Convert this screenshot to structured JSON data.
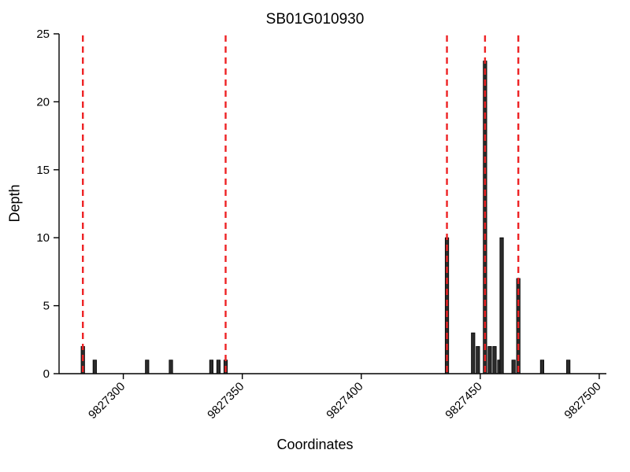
{
  "chart_data": {
    "type": "bar",
    "title": "SB01G010930",
    "xlabel": "Coordinates",
    "ylabel": "Depth",
    "xlim": [
      9827273,
      9827503
    ],
    "ylim": [
      0,
      25
    ],
    "x_ticks": [
      9827300,
      9827350,
      9827400,
      9827450,
      9827500
    ],
    "y_ticks": [
      0,
      5,
      10,
      15,
      20,
      25
    ],
    "bars": [
      {
        "x": 9827283,
        "depth": 2
      },
      {
        "x": 9827288,
        "depth": 1
      },
      {
        "x": 9827310,
        "depth": 1
      },
      {
        "x": 9827320,
        "depth": 1
      },
      {
        "x": 9827337,
        "depth": 1
      },
      {
        "x": 9827340,
        "depth": 1
      },
      {
        "x": 9827343,
        "depth": 1
      },
      {
        "x": 9827436,
        "depth": 10
      },
      {
        "x": 9827447,
        "depth": 3
      },
      {
        "x": 9827449,
        "depth": 2
      },
      {
        "x": 9827452,
        "depth": 23
      },
      {
        "x": 9827454,
        "depth": 2
      },
      {
        "x": 9827456,
        "depth": 2
      },
      {
        "x": 9827458,
        "depth": 1
      },
      {
        "x": 9827459,
        "depth": 10
      },
      {
        "x": 9827464,
        "depth": 1
      },
      {
        "x": 9827466,
        "depth": 7
      },
      {
        "x": 9827476,
        "depth": 1
      },
      {
        "x": 9827487,
        "depth": 1
      }
    ],
    "vlines": [
      9827283,
      9827343,
      9827436,
      9827452,
      9827466
    ],
    "legend": null,
    "grid": false,
    "colors": {
      "bar_fill": "#2b2b2b",
      "bar_stroke": "#000000",
      "vline": "#ee2224",
      "axis": "#000000"
    }
  }
}
